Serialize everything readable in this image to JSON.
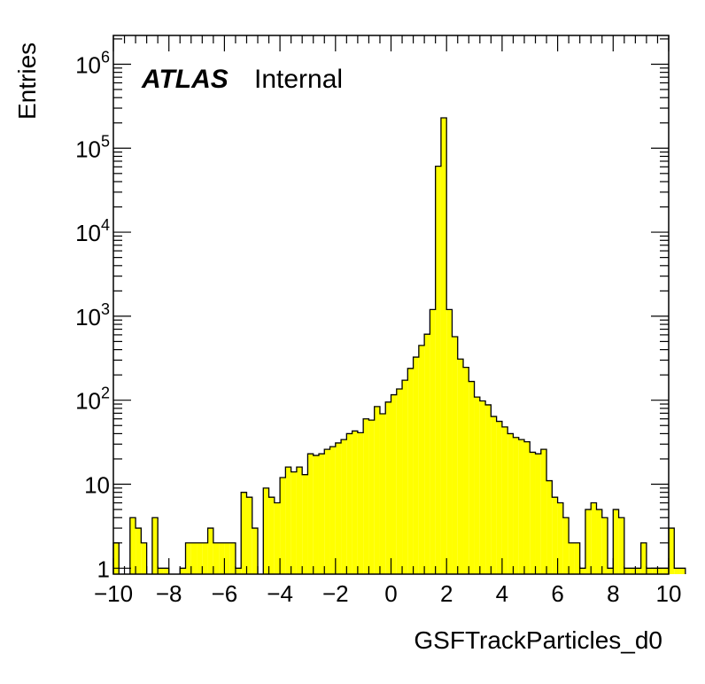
{
  "chart_data": {
    "type": "bar",
    "histogram": true,
    "xlabel": "GSFTrackParticles_d0",
    "ylabel": "Entries",
    "xlim": [
      -10,
      10
    ],
    "ylim": [
      0.85,
      2200000
    ],
    "yscale": "log",
    "bin_width": 0.2,
    "x_ticks": [
      -10,
      -8,
      -6,
      -4,
      -2,
      0,
      2,
      4,
      6,
      8,
      10
    ],
    "y_ticks": [
      {
        "value": 1,
        "base": "1",
        "exp": ""
      },
      {
        "value": 10,
        "base": "10",
        "exp": ""
      },
      {
        "value": 100,
        "base": "10",
        "exp": "2"
      },
      {
        "value": 1000,
        "base": "10",
        "exp": "3"
      },
      {
        "value": 10000,
        "base": "10",
        "exp": "4"
      },
      {
        "value": 100000,
        "base": "10",
        "exp": "5"
      },
      {
        "value": 1000000,
        "base": "10",
        "exp": "6"
      }
    ],
    "values": [
      2,
      0,
      0,
      4,
      3,
      2,
      0,
      4,
      1,
      1,
      0,
      0,
      1,
      2,
      2,
      2,
      2,
      3,
      2,
      2,
      2,
      2,
      1,
      8,
      7,
      3,
      0,
      9,
      7,
      6,
      12,
      16,
      14,
      16,
      13,
      23,
      22,
      23,
      26,
      28,
      31,
      34,
      40,
      43,
      41,
      60,
      58,
      84,
      69,
      95,
      116,
      136,
      173,
      239,
      326,
      449,
      611,
      1200,
      61000,
      230000,
      1200,
      570,
      309,
      246,
      167,
      109,
      98,
      88,
      64,
      56,
      48,
      40,
      36,
      34,
      32,
      24,
      23,
      26,
      11,
      7,
      6,
      4,
      2,
      2,
      1,
      5,
      6,
      5,
      4,
      1,
      5,
      4,
      1,
      1,
      1,
      2,
      1,
      1,
      1,
      1,
      3,
      1,
      1
    ],
    "annotations": {
      "brand": "ATLAS",
      "label": "Internal"
    },
    "colors": {
      "fill": "#ffff00",
      "line": "#000000"
    }
  }
}
